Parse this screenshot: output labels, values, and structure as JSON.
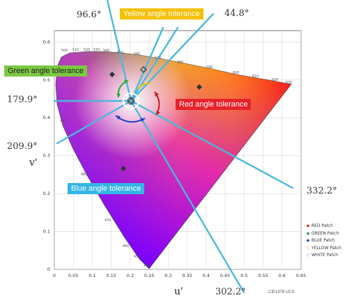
{
  "axes": {
    "x_label": "u'",
    "y_label": "v'",
    "x_ticks": [
      "0",
      "0.05",
      "0.1",
      "0.15",
      "0.2",
      "0.25",
      "0.3",
      "0.35",
      "0.4",
      "0.45",
      "0.5",
      "0.55",
      "0.6",
      "0.65"
    ],
    "y_ticks": [
      "0",
      "0.1",
      "0.2",
      "0.3",
      "0.4",
      "0.5",
      "0.6"
    ],
    "caption": "CIE1976 UCS"
  },
  "tolerance_labels": {
    "yellow": "Yellow angle tolerance",
    "green": "Green angle tolerance",
    "red": "Red angle tolerance",
    "blue": "Blue angle tolerance"
  },
  "angle_labels": {
    "a96": "96.6°",
    "a44": "44.8°",
    "a179": "179.9°",
    "a209": "209.9°",
    "a332": "332.2°",
    "a302": "302.2°"
  },
  "wavelength_labels": [
    "500",
    "510",
    "520",
    "530",
    "540",
    "550",
    "560",
    "570",
    "580",
    "590",
    "600",
    "610",
    "620",
    "630",
    "490",
    "480",
    "470",
    "460",
    "450",
    "440"
  ],
  "legend": [
    {
      "label": "RED Patch",
      "color": "#d62728",
      "marker": "◆"
    },
    {
      "label": "GREEN Patch",
      "color": "#2ca02c",
      "marker": "◆"
    },
    {
      "label": "BLUE Patch",
      "color": "#1f3fbf",
      "marker": "◆"
    },
    {
      "label": "YELLOW Patch",
      "color": "#c8c800",
      "marker": "◇"
    },
    {
      "label": "WHITE Patch",
      "color": "#999999",
      "marker": "◇"
    }
  ],
  "colors": {
    "yellow_box": "#f5c000",
    "green_box": "#7cc844",
    "red_box": "#e8222a",
    "blue_box": "#33b5e5",
    "tolerance_line": "#4bb8dc"
  }
}
